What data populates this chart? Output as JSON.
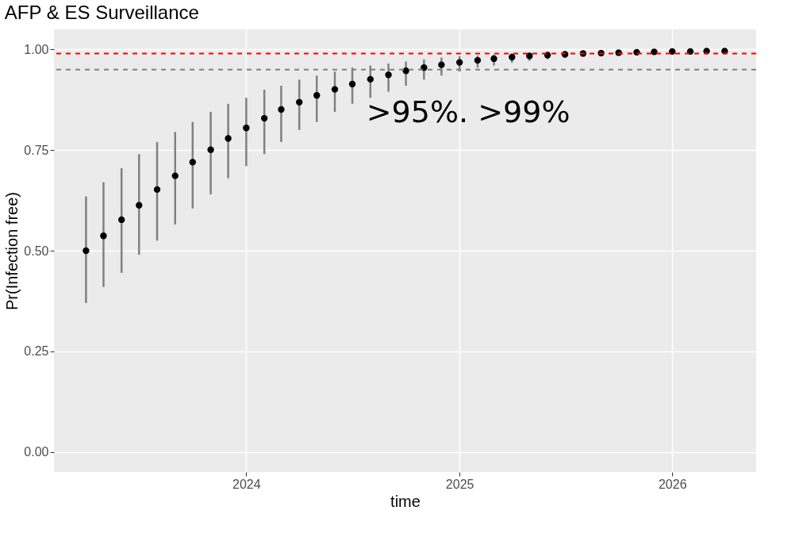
{
  "chart_data": {
    "type": "scatter",
    "title": "AFP & ES Surveillance",
    "xlabel": "time",
    "ylabel": "Pr(Infection free)",
    "x": [
      "2023-04-01",
      "2023-05-01",
      "2023-06-01",
      "2023-07-01",
      "2023-08-01",
      "2023-09-01",
      "2023-10-01",
      "2023-11-01",
      "2023-12-01",
      "2024-01-01",
      "2024-02-01",
      "2024-03-01",
      "2024-04-01",
      "2024-05-01",
      "2024-06-01",
      "2024-07-01",
      "2024-08-01",
      "2024-09-01",
      "2024-10-01",
      "2024-11-01",
      "2024-12-01",
      "2025-01-01",
      "2025-02-01",
      "2025-03-01",
      "2025-04-01",
      "2025-05-01",
      "2025-06-01",
      "2025-07-01",
      "2025-08-01",
      "2025-09-01",
      "2025-10-01",
      "2025-11-01",
      "2025-12-01",
      "2026-01-01",
      "2026-02-01",
      "2026-03-01",
      "2026-04-01"
    ],
    "series": [
      {
        "color": "#000000",
        "values": [
          0.5,
          0.537,
          0.577,
          0.613,
          0.652,
          0.686,
          0.72,
          0.751,
          0.779,
          0.805,
          0.829,
          0.851,
          0.869,
          0.886,
          0.901,
          0.914,
          0.926,
          0.937,
          0.947,
          0.955,
          0.962,
          0.968,
          0.973,
          0.977,
          0.981,
          0.984,
          0.986,
          0.988,
          0.99,
          0.991,
          0.992,
          0.993,
          0.994,
          0.995,
          0.995,
          0.996,
          0.996
        ],
        "errors": [
          [
            0.37,
            0.635
          ],
          [
            0.41,
            0.67
          ],
          [
            0.445,
            0.705
          ],
          [
            0.49,
            0.74
          ],
          [
            0.525,
            0.77
          ],
          [
            0.565,
            0.795
          ],
          [
            0.605,
            0.82
          ],
          [
            0.64,
            0.845
          ],
          [
            0.68,
            0.865
          ],
          [
            0.71,
            0.88
          ],
          [
            0.74,
            0.9
          ],
          [
            0.77,
            0.91
          ],
          [
            0.8,
            0.925
          ],
          [
            0.82,
            0.935
          ],
          [
            0.845,
            0.945
          ],
          [
            0.865,
            0.955
          ],
          [
            0.88,
            0.96
          ],
          [
            0.895,
            0.965
          ],
          [
            0.91,
            0.97
          ],
          [
            0.925,
            0.975
          ],
          [
            0.935,
            0.98
          ],
          [
            0.945,
            0.983
          ],
          [
            0.955,
            0.985
          ],
          [
            0.96,
            0.987
          ],
          [
            0.967,
            0.99
          ],
          [
            0.972,
            0.991
          ],
          [
            0.976,
            0.992
          ],
          [
            0.98,
            0.993
          ],
          [
            0.983,
            0.994
          ],
          [
            0.985,
            0.995
          ],
          [
            0.987,
            0.996
          ],
          [
            0.989,
            0.996
          ],
          [
            0.99,
            0.997
          ],
          [
            0.991,
            0.997
          ],
          [
            0.992,
            0.998
          ],
          [
            0.993,
            0.998
          ],
          [
            0.993,
            0.998
          ]
        ]
      }
    ],
    "xlim": [
      "2023-02-05",
      "2026-05-25"
    ],
    "xticks": [
      "2024",
      "2025",
      "2026"
    ],
    "ylim": [
      -0.05,
      1.05
    ],
    "yticks": [
      {
        "value": 0,
        "label": "0.00"
      },
      {
        "value": 0.25,
        "label": "0.25"
      },
      {
        "value": 0.5,
        "label": "0.50"
      },
      {
        "value": 0.75,
        "label": "0.75"
      },
      {
        "value": 1,
        "label": "1.00"
      }
    ],
    "ref_lines": [
      {
        "axis": "y",
        "value": 0.99,
        "color": "#ff0000",
        "line_style": "dashed"
      },
      {
        "axis": "y",
        "value": 0.95,
        "color": "#808080",
        "line_style": "dashed"
      }
    ],
    "annotations": [
      ">95%.  >99%"
    ],
    "grid": true,
    "marker": "circle"
  }
}
